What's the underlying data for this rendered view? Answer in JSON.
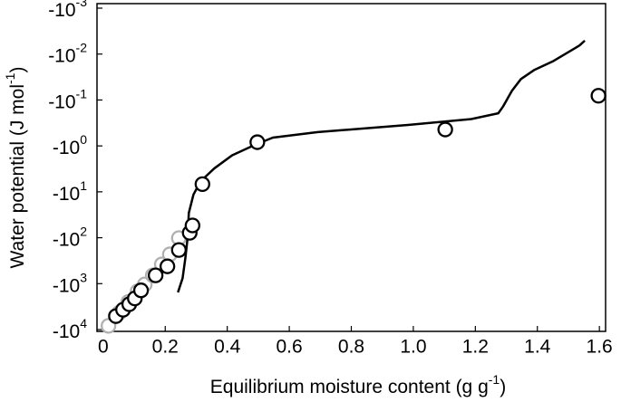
{
  "chart_data": {
    "type": "line",
    "xlabel": "Equilibrium moisture content (g g",
    "xlabel_exponent": "-1",
    "xlabel_end": ")",
    "ylabel": "Water potential (J mol",
    "ylabel_exponent": "-1",
    "ylabel_end": ")",
    "xlim": [
      -0.02,
      1.62
    ],
    "ylim": [
      -0.001,
      -10000
    ],
    "ylog": true,
    "xticks": [
      0,
      0.2,
      0.4,
      0.6,
      0.8,
      {
        "value": 1.0,
        "label": "1.0"
      },
      1.2,
      1.4,
      1.6
    ],
    "yticks": [
      {
        "value": -0.001,
        "label": "-10",
        "label_exponent": "-3"
      },
      {
        "value": -0.01,
        "label": "-10",
        "label_exponent": "-2"
      },
      {
        "value": -0.1,
        "label": "-10",
        "label_exponent": "-1"
      },
      {
        "value": -1,
        "label": "-10",
        "label_exponent": "0"
      },
      {
        "value": -10,
        "label": "-10",
        "label_exponent": "1"
      },
      {
        "value": -100,
        "label": "-10",
        "label_exponent": "2"
      },
      {
        "value": -1000,
        "label": "-10",
        "label_exponent": "3"
      },
      {
        "value": -10000,
        "label": "-10",
        "label_exponent": "4"
      }
    ],
    "series": [
      {
        "style": "marker",
        "color": "#b0b0b0",
        "x": [
          0.017,
          0.052,
          0.081,
          0.111,
          0.134,
          0.16,
          0.189,
          0.215,
          0.244
        ],
        "values": [
          -8300,
          -4300,
          -2500,
          -1470,
          -1040,
          -660,
          -380,
          -230,
          -102
        ]
      },
      {
        "style": "line",
        "color": "#000000",
        "x": [
          0.241,
          0.256,
          0.265,
          0.273,
          0.276,
          0.291,
          0.314,
          0.358,
          0.416,
          0.489,
          0.547,
          0.692,
          0.983,
          1.187,
          1.274,
          1.289,
          1.318,
          1.347,
          1.391,
          1.449,
          1.536,
          1.553
        ],
        "values": [
          -1550,
          -760,
          -275,
          -89,
          -29,
          -11.5,
          -5.9,
          -3.1,
          -1.6,
          -0.95,
          -0.66,
          -0.5,
          -0.35,
          -0.26,
          -0.195,
          -0.14,
          -0.063,
          -0.035,
          -0.022,
          -0.0145,
          -0.0065,
          -0.0051
        ]
      },
      {
        "style": "marker",
        "color": "#000000",
        "x": [
          0.041,
          0.064,
          0.084,
          0.102,
          0.122,
          0.169,
          0.207,
          0.244,
          0.279,
          0.288,
          0.32,
          0.497,
          1.103,
          1.597
        ],
        "values": [
          -5100,
          -3700,
          -2800,
          -2100,
          -1400,
          -660,
          -420,
          -185,
          -78,
          -54,
          -6.8,
          -0.83,
          -0.44,
          -0.081
        ]
      }
    ]
  }
}
